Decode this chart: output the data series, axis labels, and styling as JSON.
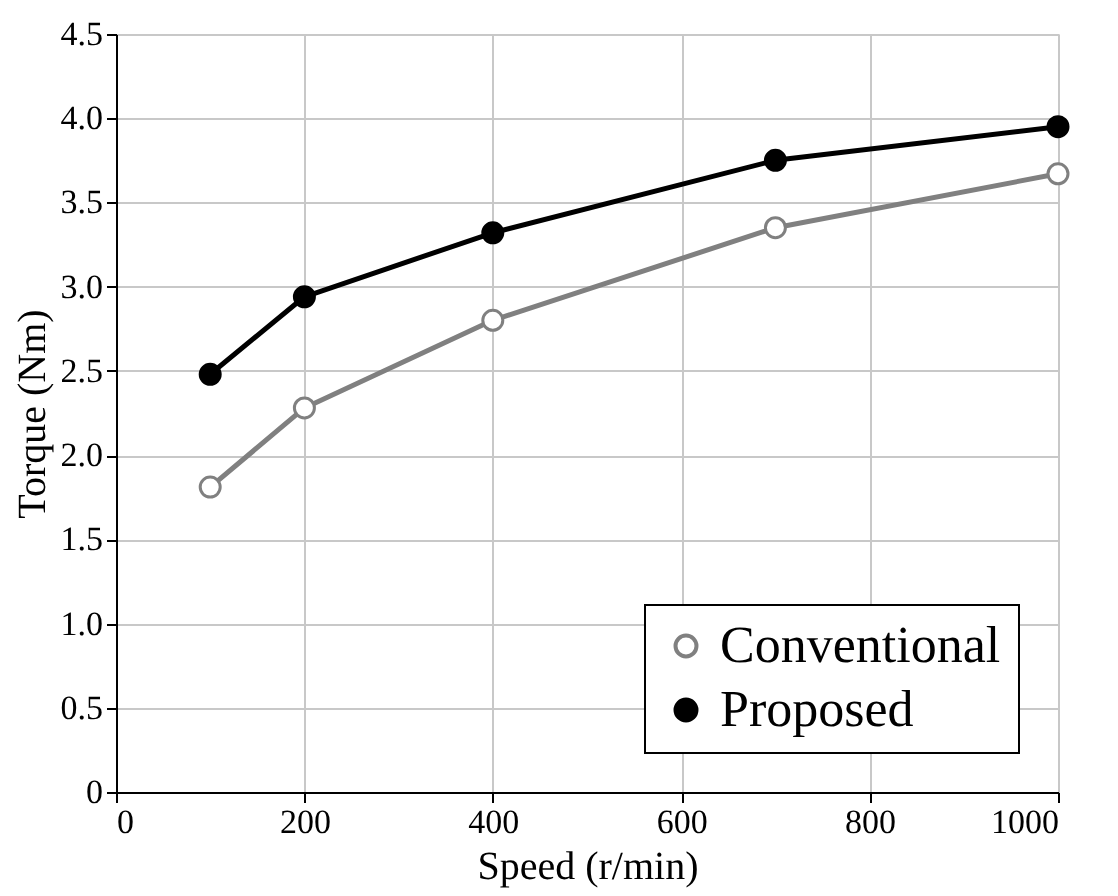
{
  "chart_data": {
    "type": "line",
    "xlabel": "Speed (r/min)",
    "ylabel": "Torque (Nm)",
    "x": [
      100,
      200,
      400,
      700,
      1000
    ],
    "series": [
      {
        "name": "Conventional",
        "color": "#808080",
        "values": [
          1.81,
          2.28,
          2.8,
          3.35,
          3.67
        ]
      },
      {
        "name": "Proposed",
        "color": "#000000",
        "values": [
          2.48,
          2.94,
          3.32,
          3.75,
          3.95
        ]
      }
    ],
    "xlim": [
      0,
      1000
    ],
    "xticks": [
      0,
      200,
      400,
      600,
      800,
      1000
    ],
    "ylim": [
      0,
      4.5
    ],
    "yticks": [
      {
        "value": 0,
        "label": "0"
      },
      {
        "value": 0.5,
        "label": "0.5"
      },
      {
        "value": 1,
        "label": "1.0"
      },
      {
        "value": 1.5,
        "label": "1.5"
      },
      {
        "value": 2,
        "label": "2.0"
      },
      {
        "value": 2.5,
        "label": "2.5"
      },
      {
        "value": 3,
        "label": "3.0"
      },
      {
        "value": 3.5,
        "label": "3.5"
      },
      {
        "value": 4,
        "label": "4.0"
      },
      {
        "value": 4.5,
        "label": "4.5"
      }
    ],
    "grid": true,
    "legend": "bottom right",
    "marker": "circle",
    "line_style": "solid"
  }
}
